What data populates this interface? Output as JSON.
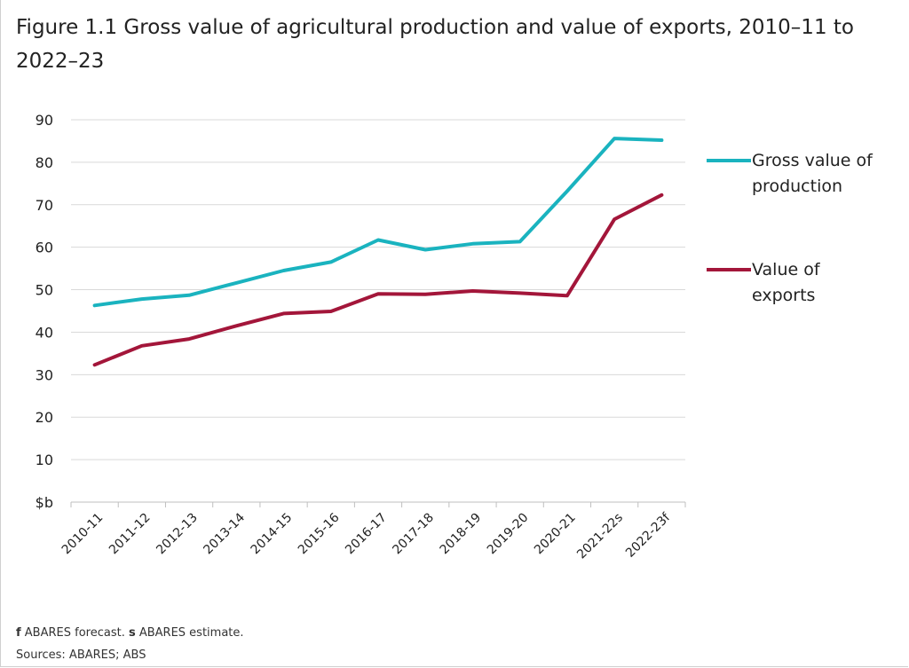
{
  "title": "Figure 1.1 Gross value of agricultural production and value of exports, 2010–11 to 2022–23",
  "footnote": {
    "f_marker": "f",
    "f_text": " ABARES forecast. ",
    "s_marker": "s",
    "s_text": " ABARES estimate.",
    "sources": "Sources: ABARES; ABS"
  },
  "colors": {
    "gross_value": "#1ab3bf",
    "exports": "#a3163a",
    "grid": "#d9d9d9",
    "axis": "#bfbfbf"
  },
  "chart_data": {
    "type": "line",
    "categories": [
      "2010-11",
      "2011-12",
      "2012-13",
      "2013-14",
      "2014-15",
      "2015-16",
      "2016-17",
      "2017-18",
      "2018-19",
      "2019-20",
      "2020-21",
      "2021-22s",
      "2022-23f"
    ],
    "y_tick_labels": [
      "$b",
      "10",
      "20",
      "30",
      "40",
      "50",
      "60",
      "70",
      "80",
      "90"
    ],
    "ylim": [
      0,
      90
    ],
    "grid": true,
    "legend_position": "right",
    "series": [
      {
        "name": "Gross value of production",
        "legend_lines": [
          "Gross value of",
          "production"
        ],
        "color_key": "gross_value",
        "values": [
          46.3,
          47.8,
          48.7,
          51.6,
          54.5,
          56.5,
          61.7,
          59.4,
          60.8,
          61.3,
          73.2,
          85.6,
          85.2
        ]
      },
      {
        "name": "Value of exports",
        "legend_lines": [
          "Value of",
          "exports"
        ],
        "color_key": "exports",
        "values": [
          32.3,
          36.8,
          38.4,
          41.5,
          44.4,
          44.9,
          49.0,
          48.9,
          49.7,
          49.2,
          48.6,
          66.6,
          72.3
        ]
      }
    ]
  }
}
